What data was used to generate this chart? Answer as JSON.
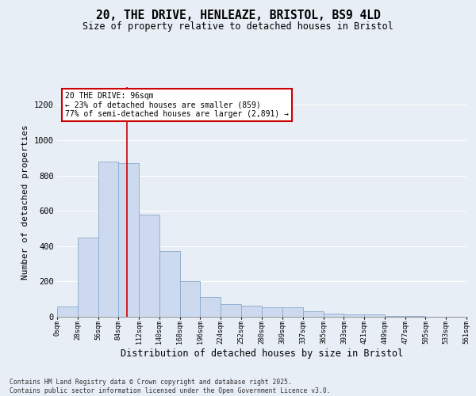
{
  "title_line1": "20, THE DRIVE, HENLEAZE, BRISTOL, BS9 4LD",
  "title_line2": "Size of property relative to detached houses in Bristol",
  "xlabel": "Distribution of detached houses by size in Bristol",
  "ylabel": "Number of detached properties",
  "bar_color": "#ccd9ee",
  "bar_edge_color": "#88aacc",
  "background_color": "#e8eef5",
  "grid_color": "#ffffff",
  "annotation_text": "20 THE DRIVE: 96sqm\n← 23% of detached houses are smaller (859)\n77% of semi-detached houses are larger (2,891) →",
  "annotation_box_color": "#ffffff",
  "annotation_box_edge_color": "#cc0000",
  "vline_x": 96,
  "vline_color": "#cc0000",
  "footnote": "Contains HM Land Registry data © Crown copyright and database right 2025.\nContains public sector information licensed under the Open Government Licence v3.0.",
  "bin_edges": [
    0,
    28,
    56,
    84,
    112,
    140,
    168,
    196,
    224,
    252,
    280,
    309,
    337,
    365,
    393,
    421,
    449,
    477,
    505,
    533,
    561
  ],
  "bin_labels": [
    "0sqm",
    "28sqm",
    "56sqm",
    "84sqm",
    "112sqm",
    "140sqm",
    "168sqm",
    "196sqm",
    "224sqm",
    "252sqm",
    "280sqm",
    "309sqm",
    "337sqm",
    "365sqm",
    "393sqm",
    "421sqm",
    "449sqm",
    "477sqm",
    "505sqm",
    "533sqm",
    "561sqm"
  ],
  "bar_heights": [
    60,
    450,
    880,
    870,
    580,
    370,
    200,
    110,
    70,
    65,
    55,
    55,
    30,
    20,
    15,
    15,
    5,
    5,
    0,
    0
  ],
  "ylim": [
    0,
    1300
  ],
  "yticks": [
    0,
    200,
    400,
    600,
    800,
    1000,
    1200
  ]
}
